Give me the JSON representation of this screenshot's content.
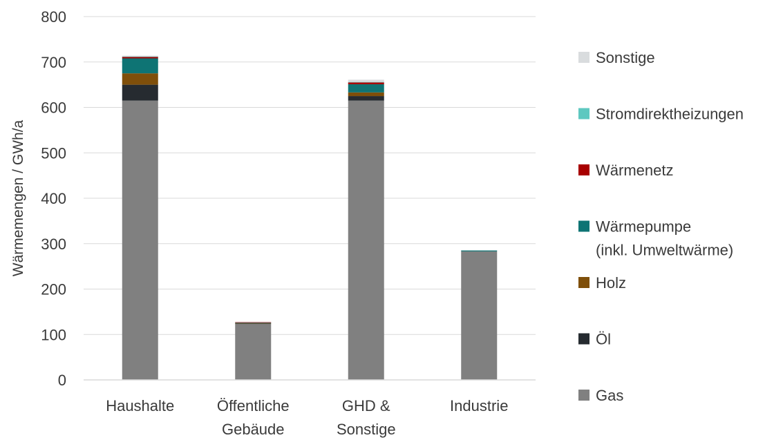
{
  "chart_data": {
    "type": "bar",
    "stacked": true,
    "title": "",
    "xlabel": "",
    "ylabel": "Wärmemengen / GWh/a",
    "ylim": [
      0,
      800
    ],
    "yticks": [
      0,
      100,
      200,
      300,
      400,
      500,
      600,
      700,
      800
    ],
    "grid": true,
    "legend_position": "right",
    "categories": [
      [
        "Haushalte"
      ],
      [
        "Öffentliche",
        "Gebäude"
      ],
      [
        "GHD &",
        "Sonstige"
      ],
      [
        "Industrie"
      ]
    ],
    "series": [
      {
        "name": "Gas",
        "legend_lines": [
          "Gas"
        ],
        "color": "#808080",
        "values": [
          615,
          123,
          615,
          283
        ]
      },
      {
        "name": "Öl",
        "legend_lines": [
          "Öl"
        ],
        "color": "#262b30",
        "values": [
          35,
          1,
          10,
          0
        ]
      },
      {
        "name": "Holz",
        "legend_lines": [
          "Holz"
        ],
        "color": "#7f4f0a",
        "values": [
          25,
          1,
          8,
          0
        ]
      },
      {
        "name": "Wärmepumpe (inkl. Umweltwärme)",
        "legend_lines": [
          "Wärmepumpe",
          "(inkl. Umweltwärme)"
        ],
        "color": "#0e7474",
        "values": [
          33,
          1,
          18,
          2
        ]
      },
      {
        "name": "Wärmenetz",
        "legend_lines": [
          "Wärmenetz"
        ],
        "color": "#a80000",
        "values": [
          3,
          1,
          4,
          0
        ]
      },
      {
        "name": "Stromdirektheizungen",
        "legend_lines": [
          "Stromdirektheizungen"
        ],
        "color": "#5ec8c0",
        "values": [
          1,
          0,
          1,
          0
        ]
      },
      {
        "name": "Sonstige",
        "legend_lines": [
          "Sonstige"
        ],
        "color": "#d9dcde",
        "values": [
          2,
          1,
          5,
          1
        ]
      }
    ]
  }
}
